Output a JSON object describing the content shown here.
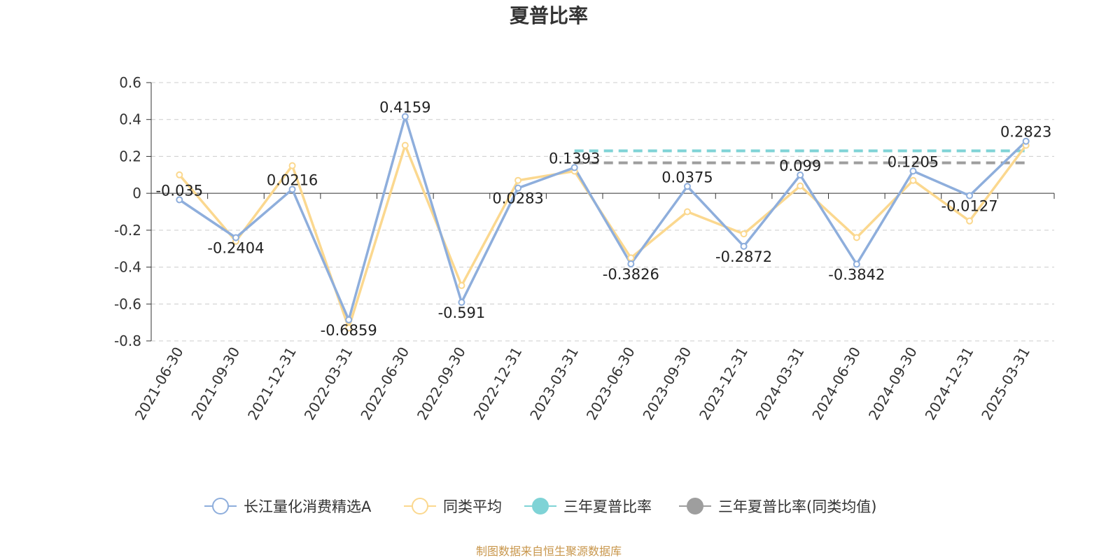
{
  "chart_data": {
    "type": "line",
    "title": "夏普比率",
    "xlabel": "",
    "ylabel": "",
    "ylim": [
      -0.8,
      0.6
    ],
    "yticks": [
      "0.6",
      "0.4",
      "0.2",
      "0",
      "-0.2",
      "-0.4",
      "-0.6",
      "-0.8"
    ],
    "grid": true,
    "legend_position": "bottom",
    "categories": [
      "2021-06-30",
      "2021-09-30",
      "2021-12-31",
      "2022-03-31",
      "2022-06-30",
      "2022-09-30",
      "2022-12-31",
      "2023-03-31",
      "2023-06-30",
      "2023-09-30",
      "2023-12-31",
      "2024-03-31",
      "2024-06-30",
      "2024-09-30",
      "2024-12-31",
      "2025-03-31"
    ],
    "series": [
      {
        "name": "长江量化消费精选A",
        "color": "#8eaedc",
        "values": [
          -0.035,
          -0.2404,
          0.0216,
          -0.6859,
          0.4159,
          -0.591,
          0.0283,
          0.1393,
          -0.3826,
          0.0375,
          -0.2872,
          0.099,
          -0.3842,
          0.1205,
          -0.0127,
          0.2823
        ],
        "labels": [
          "-0.035",
          "-0.2404",
          "0.0216",
          "-0.6859",
          "0.4159",
          "-0.591",
          "0.0283",
          "0.1393",
          "-0.3826",
          "0.0375",
          "-0.2872",
          "0.099",
          "-0.3842",
          "0.1205",
          "-0.0127",
          "0.2823"
        ]
      },
      {
        "name": "同类平均",
        "color": "#fbd88f",
        "values": [
          0.1,
          -0.26,
          0.15,
          -0.73,
          0.26,
          -0.5,
          0.07,
          0.12,
          -0.35,
          -0.1,
          -0.22,
          0.04,
          -0.24,
          0.07,
          -0.15,
          0.26
        ]
      },
      {
        "name": "三年夏普比率",
        "color": "#7fd3d6",
        "type": "dashed",
        "value": 0.23,
        "x_start": "2023-03-31",
        "x_end": "2025-03-31"
      },
      {
        "name": "三年夏普比率(同类均值)",
        "color": "#9e9e9e",
        "type": "dashed",
        "value": 0.165,
        "x_start": "2023-03-31",
        "x_end": "2025-03-31"
      }
    ],
    "source": "制图数据来自恒生聚源数据库"
  }
}
